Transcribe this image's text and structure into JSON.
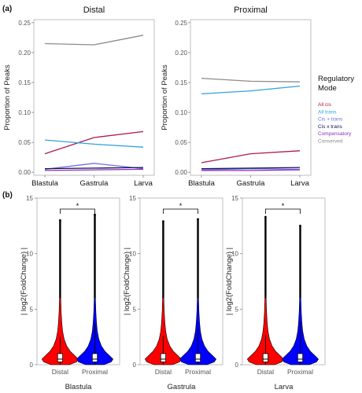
{
  "panels": {
    "a": "(a)",
    "b": "(b)"
  },
  "legend": {
    "title": "Regulatory Mode",
    "items": [
      {
        "label": "All cis",
        "color": "#b0194f"
      },
      {
        "label": "All trans",
        "color": "#2fa3dc"
      },
      {
        "label": "Cis + trans",
        "color": "#6b6fe6"
      },
      {
        "label": "Cis x trans",
        "color": "#14124a"
      },
      {
        "label": "Compensatory",
        "color": "#8f2fc2"
      },
      {
        "label": "Conserved",
        "color": "#8c8c8c"
      }
    ]
  },
  "chart_data": [
    {
      "type": "line",
      "title": "Distal",
      "ylabel": "Proportion of Peaks",
      "categories": [
        "Blastula",
        "Gastrula",
        "Larva"
      ],
      "ylim": [
        -0.005,
        0.255
      ],
      "yticks": [
        "0.00",
        "0.05",
        "0.10",
        "0.15",
        "0.20",
        "0.25"
      ],
      "grid": false,
      "series": [
        {
          "name": "All cis",
          "color": "#b0194f",
          "values": [
            0.031,
            0.058,
            0.068
          ]
        },
        {
          "name": "All trans",
          "color": "#2fa3dc",
          "values": [
            0.054,
            0.047,
            0.042
          ]
        },
        {
          "name": "Cis + trans",
          "color": "#6b6fe6",
          "values": [
            0.005,
            0.015,
            0.006
          ]
        },
        {
          "name": "Cis x trans",
          "color": "#14124a",
          "values": [
            0.006,
            0.007,
            0.008
          ]
        },
        {
          "name": "Compensatory",
          "color": "#8f2fc2",
          "values": [
            0.003,
            0.004,
            0.005
          ]
        },
        {
          "name": "Conserved",
          "color": "#8c8c8c",
          "values": [
            0.215,
            0.213,
            0.229
          ]
        }
      ]
    },
    {
      "type": "line",
      "title": "Proximal",
      "ylabel": "Proportion of Peaks",
      "categories": [
        "Blastula",
        "Gastrula",
        "Larva"
      ],
      "ylim": [
        -0.005,
        0.255
      ],
      "yticks": [
        "0.00",
        "0.05",
        "0.10",
        "0.15",
        "0.20",
        "0.25"
      ],
      "grid": false,
      "series": [
        {
          "name": "All cis",
          "color": "#b0194f",
          "values": [
            0.016,
            0.031,
            0.036
          ]
        },
        {
          "name": "All trans",
          "color": "#2fa3dc",
          "values": [
            0.131,
            0.136,
            0.144
          ]
        },
        {
          "name": "Cis + trans",
          "color": "#6b6fe6",
          "values": [
            0.004,
            0.006,
            0.005
          ]
        },
        {
          "name": "Cis x trans",
          "color": "#14124a",
          "values": [
            0.006,
            0.007,
            0.008
          ]
        },
        {
          "name": "Compensatory",
          "color": "#8f2fc2",
          "values": [
            0.003,
            0.003,
            0.004
          ]
        },
        {
          "name": "Conserved",
          "color": "#8c8c8c",
          "values": [
            0.157,
            0.152,
            0.151
          ]
        }
      ]
    },
    {
      "type": "violin",
      "xlabel": "Blastula",
      "ylabel": "| log2(FoldChange) |",
      "categories": [
        "Distal",
        "Proximal"
      ],
      "colors": [
        "#ff0000",
        "#0000ff"
      ],
      "ylim": [
        0,
        15
      ],
      "yticks": [
        "0",
        "5",
        "10",
        "15"
      ],
      "significance": "*",
      "max": [
        13.0,
        13.5
      ],
      "whisker_top": [
        2.5,
        3.7
      ]
    },
    {
      "type": "violin",
      "xlabel": "Gastrula",
      "ylabel": "| log2(FoldChange) |",
      "categories": [
        "Distal",
        "Proximal"
      ],
      "colors": [
        "#ff0000",
        "#0000ff"
      ],
      "ylim": [
        0,
        15
      ],
      "yticks": [
        "0",
        "5",
        "10",
        "15"
      ],
      "significance": "*",
      "max": [
        12.9,
        13.1
      ],
      "whisker_top": [
        2.6,
        3.3
      ]
    },
    {
      "type": "violin",
      "xlabel": "Larva",
      "ylabel": "| log2(FoldChange) |",
      "categories": [
        "Distal",
        "Proximal"
      ],
      "colors": [
        "#ff0000",
        "#0000ff"
      ],
      "ylim": [
        0,
        15
      ],
      "yticks": [
        "0",
        "5",
        "10",
        "15"
      ],
      "significance": "*",
      "max": [
        13.3,
        12.5
      ],
      "whisker_top": [
        2.7,
        3.8
      ]
    }
  ]
}
